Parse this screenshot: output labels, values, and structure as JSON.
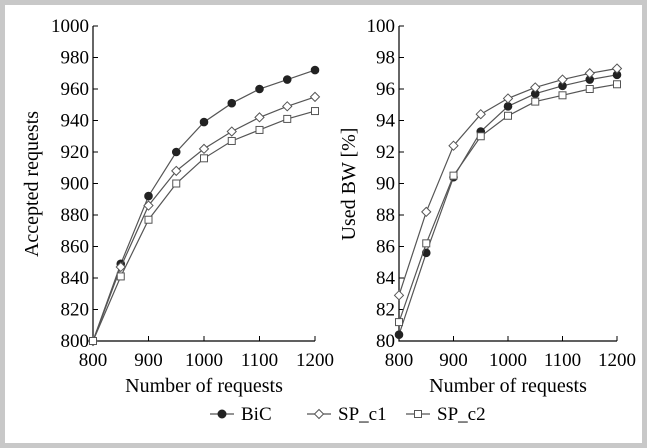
{
  "chart_data": [
    {
      "type": "line",
      "xlabel": "Number of requests",
      "ylabel": "Accepted requests",
      "xlim": [
        800,
        1200
      ],
      "ylim": [
        800,
        1000
      ],
      "xticks": [
        800,
        900,
        1000,
        1100,
        1200
      ],
      "yticks": [
        800,
        820,
        840,
        860,
        880,
        900,
        920,
        940,
        960,
        980,
        1000
      ],
      "x": [
        800,
        850,
        900,
        950,
        1000,
        1050,
        1100,
        1150,
        1200
      ],
      "series": [
        {
          "name": "BiC",
          "marker": "circle-filled",
          "values": [
            800,
            849,
            892,
            920,
            939,
            951,
            960,
            966,
            972
          ]
        },
        {
          "name": "SP_c1",
          "marker": "diamond-open",
          "values": [
            800,
            847,
            886,
            908,
            922,
            933,
            942,
            949,
            955
          ]
        },
        {
          "name": "SP_c2",
          "marker": "square-open",
          "values": [
            800,
            841,
            877,
            900,
            916,
            927,
            934,
            941,
            946
          ]
        }
      ]
    },
    {
      "type": "line",
      "xlabel": "Number of requests",
      "ylabel": "Used BW [%]",
      "xlim": [
        800,
        1200
      ],
      "ylim": [
        80,
        100
      ],
      "xticks": [
        800,
        900,
        1000,
        1100,
        1200
      ],
      "yticks": [
        80,
        82,
        84,
        86,
        88,
        90,
        92,
        94,
        96,
        98,
        100
      ],
      "x": [
        800,
        850,
        900,
        950,
        1000,
        1050,
        1100,
        1150,
        1200
      ],
      "series": [
        {
          "name": "BiC",
          "marker": "circle-filled",
          "values": [
            80.4,
            85.6,
            90.4,
            93.3,
            94.9,
            95.7,
            96.2,
            96.6,
            96.9
          ]
        },
        {
          "name": "SP_c1",
          "marker": "diamond-open",
          "values": [
            82.9,
            88.2,
            92.4,
            94.4,
            95.4,
            96.1,
            96.6,
            97.0,
            97.3
          ]
        },
        {
          "name": "SP_c2",
          "marker": "square-open",
          "values": [
            81.2,
            86.2,
            90.5,
            93.0,
            94.3,
            95.2,
            95.6,
            96.0,
            96.3
          ]
        }
      ]
    }
  ],
  "legend": {
    "position": "bottom-center",
    "items": [
      "BiC",
      "SP_c1",
      "SP_c2"
    ]
  },
  "colors": {
    "line": "#555555",
    "frame": "#c8c8c8",
    "marker_fill": "#222222"
  }
}
